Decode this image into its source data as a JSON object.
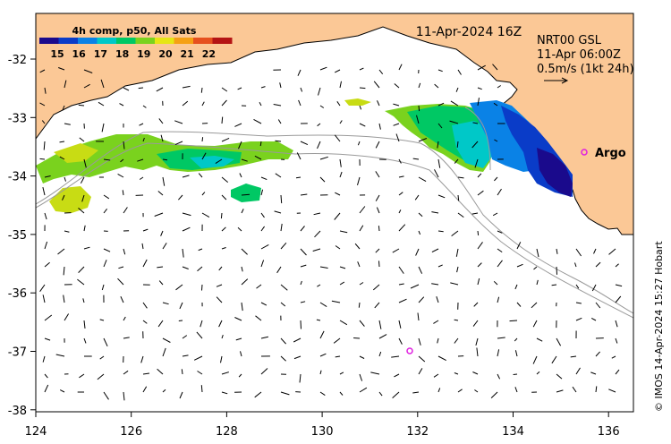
{
  "map": {
    "timestamp": "11-Apr-2024 16Z",
    "legend_title": "4h comp, p50, All Sats",
    "colorbar_ticks": [
      "15",
      "16",
      "17",
      "18",
      "19",
      "20",
      "21",
      "22"
    ],
    "colorbar_colors": [
      "#1a0a8c",
      "#0a3cc8",
      "#0a82e6",
      "#00c8c8",
      "#00c864",
      "#7ad21e",
      "#e6e614",
      "#f5a014",
      "#e6501e",
      "#b41414"
    ],
    "current_product": "NRT00 GSL",
    "current_time": "11-Apr 06:00Z",
    "current_scale": "0.5m/s (1kt 24h)",
    "argo_label": "Argo",
    "credit": "© IMOS 14-Apr-2024 15:27 Hobart",
    "x_ticks": [
      "124",
      "126",
      "128",
      "130",
      "132",
      "134",
      "136"
    ],
    "y_ticks": [
      "-32",
      "-33",
      "-34",
      "-35",
      "-36",
      "-37",
      "-38"
    ],
    "land_color": "#fbc896",
    "argo_color": "#e020e0"
  }
}
